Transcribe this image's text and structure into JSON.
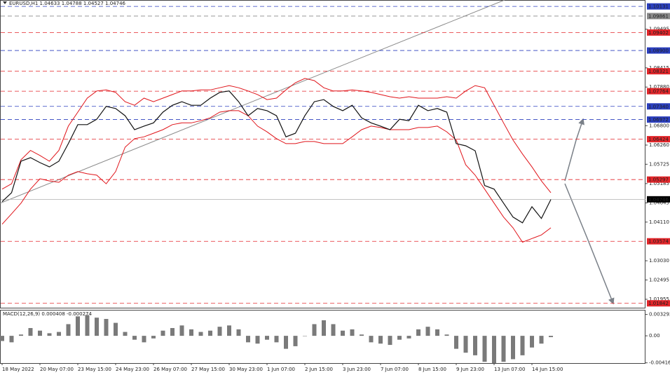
{
  "chart_data": [
    {
      "type": "line",
      "title": "EURUSD,H1  1.04633 1.04788 1.04527 1.04746",
      "ylim": [
        1.017,
        1.1031
      ],
      "yticks": [
        1.09495,
        1.08415,
        {
          "value": 1.0788,
          "label": "1.07880"
        },
        {
          "value": 1.068,
          "label": "1.06800"
        },
        {
          "value": 1.0626,
          "label": "1.06260"
        },
        1.05725,
        1.05185,
        1.04645,
        {
          "value": 1.0411,
          "label": "1.04110"
        },
        {
          "value": 1.0303,
          "label": "1.03030"
        },
        1.02495,
        1.01955
      ],
      "levels": [
        {
          "value": 1.10131,
          "color": "#2b3fbf"
        },
        {
          "value": 1.09861,
          "color": "#8a8a8a"
        },
        {
          "value": 1.09402,
          "color": "#e3262a"
        },
        {
          "value": 1.089,
          "label": "1.08900",
          "color": "#2b3fbf"
        },
        {
          "value": 1.08321,
          "color": "#e3262a"
        },
        {
          "value": 1.07764,
          "color": "#e3262a"
        },
        {
          "value": 1.0734,
          "label": "1.07340",
          "color": "#2b3fbf"
        },
        {
          "value": 1.06972,
          "color": "#2b3fbf"
        },
        {
          "value": 1.06424,
          "color": "#e3262a"
        },
        {
          "value": 1.05297,
          "color": "#e3262a"
        },
        {
          "value": 1.03574,
          "color": "#e3262a"
        },
        {
          "value": 1.01842,
          "color": "#e3262a"
        }
      ],
      "last_price": 1.04746,
      "series": [
        {
          "color": "#e0141a",
          "values": [
            1.0503,
            1.0518,
            1.0585,
            1.0611,
            1.0597,
            1.0581,
            1.0611,
            1.0679,
            1.0718,
            1.0757,
            1.0777,
            1.078,
            1.0773,
            1.0747,
            1.0737,
            1.0757,
            1.0747,
            1.0757,
            1.0767,
            1.0777,
            1.0777,
            1.078,
            1.078,
            1.0786,
            1.0792,
            1.0786,
            1.0777,
            1.0767,
            1.0753,
            1.0757,
            1.078,
            1.08,
            1.0812,
            1.0806,
            1.0786,
            1.0777,
            1.0777,
            1.078,
            1.0777,
            1.0773,
            1.0767,
            1.0761,
            1.0757,
            1.0761,
            1.0757,
            1.0757,
            1.0757,
            1.0761,
            1.0757,
            1.0777,
            1.0792,
            1.0786,
            1.0737,
            1.0688,
            1.064,
            1.0601,
            1.0565,
            1.0526,
            1.0493
          ]
        },
        {
          "color": "#e0141a",
          "values": [
            1.0405,
            1.0434,
            1.0464,
            1.0503,
            1.0532,
            1.0526,
            1.0522,
            1.0542,
            1.0552,
            1.0546,
            1.0542,
            1.0518,
            1.0552,
            1.062,
            1.0644,
            1.0649,
            1.0659,
            1.0669,
            1.0683,
            1.0688,
            1.0688,
            1.0694,
            1.0702,
            1.0718,
            1.0722,
            1.0722,
            1.0708,
            1.0679,
            1.0663,
            1.0644,
            1.063,
            1.063,
            1.0636,
            1.0636,
            1.063,
            1.063,
            1.063,
            1.0649,
            1.0669,
            1.0679,
            1.0675,
            1.0669,
            1.0669,
            1.0669,
            1.0675,
            1.0675,
            1.0679,
            1.0663,
            1.064,
            1.0571,
            1.0542,
            1.0503,
            1.0464,
            1.0425,
            1.0395,
            1.0355,
            1.0365,
            1.0375,
            1.0395
          ]
        },
        {
          "color": "#111111",
          "values": [
            1.0468,
            1.0493,
            1.0581,
            1.0591,
            1.0577,
            1.0565,
            1.0581,
            1.063,
            1.0683,
            1.0683,
            1.0698,
            1.0734,
            1.0728,
            1.0708,
            1.0669,
            1.0679,
            1.0688,
            1.0718,
            1.0737,
            1.0747,
            1.0737,
            1.0737,
            1.0757,
            1.0773,
            1.0777,
            1.0747,
            1.0708,
            1.0728,
            1.0722,
            1.0708,
            1.0649,
            1.0659,
            1.0708,
            1.0747,
            1.0753,
            1.0734,
            1.0722,
            1.0737,
            1.0702,
            1.0688,
            1.0679,
            1.0669,
            1.0698,
            1.0694,
            1.0737,
            1.0722,
            1.0728,
            1.0718,
            1.063,
            1.0624,
            1.061,
            1.0513,
            1.0503,
            1.0464,
            1.0425,
            1.0409,
            1.0454,
            1.0421,
            1.0474
          ]
        }
      ]
    },
    {
      "type": "bar",
      "title": "MACD(12,26,9) 0.000408 -0.000274",
      "color": "#7a7a7a",
      "ylim": [
        -0.0042,
        0.0039
      ],
      "yticks": [
        0.003292,
        {
          "value": 0,
          "label": "0.00"
        },
        -0.004163
      ],
      "categories": [
        "18 May 2022",
        null,
        null,
        null,
        "20 May 07:00",
        null,
        null,
        null,
        "23 May 15:00",
        null,
        null,
        null,
        "24 May 23:00",
        null,
        null,
        null,
        "26 May 07:00",
        null,
        null,
        null,
        "27 May 15:00",
        null,
        null,
        null,
        "30 May 23:00",
        null,
        null,
        null,
        "1 Jun 07:00",
        null,
        null,
        null,
        "2 Jun 15:00",
        null,
        null,
        null,
        "3 Jun 23:00",
        null,
        null,
        null,
        "7 Jun 07:00",
        null,
        null,
        null,
        "8 Jun 15:00",
        null,
        null,
        null,
        "9 Jun 23:00",
        null,
        null,
        null,
        "13 Jun 07:00",
        null,
        null,
        null,
        "14 Jun 15:00",
        null,
        null
      ],
      "values": [
        -0.0008,
        -0.001,
        0.0002,
        0.0012,
        0.0008,
        0.0004,
        0.0006,
        0.0018,
        0.003,
        0.0032,
        0.0028,
        0.0026,
        0.002,
        0.0006,
        -0.0006,
        -0.001,
        -0.0004,
        0.0008,
        0.0012,
        0.0016,
        0.001,
        0.0006,
        0.0008,
        0.0014,
        0.0016,
        0.001,
        -0.001,
        -0.0012,
        -0.0006,
        -0.001,
        -0.002,
        -0.0016,
        0,
        0.0018,
        0.0024,
        0.0018,
        0.0008,
        0.001,
        0.0002,
        -0.001,
        -0.0012,
        -0.0014,
        -0.0006,
        -0.0004,
        0.001,
        0.0014,
        0.001,
        0.0002,
        -0.002,
        -0.0026,
        -0.003,
        -0.004,
        -0.0042,
        -0.004,
        -0.0036,
        -0.003,
        -0.0018,
        -0.0012,
        -0.0002
      ]
    }
  ]
}
